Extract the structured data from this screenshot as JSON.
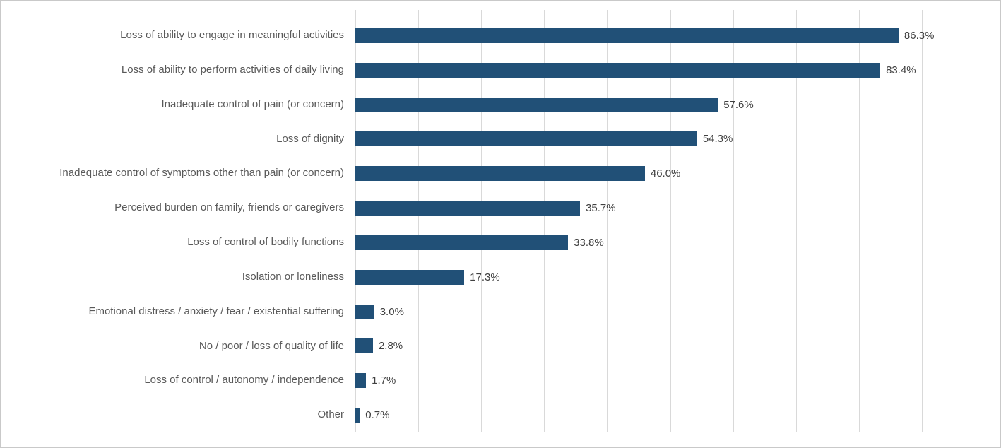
{
  "chart_data": {
    "type": "bar",
    "orientation": "horizontal",
    "title": "",
    "xlabel": "",
    "ylabel": "",
    "xlim": [
      0,
      100
    ],
    "gridline_interval": 10,
    "grid": true,
    "legend": false,
    "categories": [
      "Loss of ability to engage in meaningful activities",
      "Loss of ability to perform activities of daily living",
      "Inadequate control of pain (or concern)",
      "Loss of dignity",
      "Inadequate control of symptoms other than pain (or concern)",
      "Perceived burden on family, friends or caregivers",
      "Loss of control of bodily functions",
      "Isolation or loneliness",
      "Emotional distress / anxiety / fear / existential suffering",
      "No / poor / loss of quality of life",
      "Loss of control / autonomy / independence",
      "Other"
    ],
    "values": [
      86.3,
      83.4,
      57.6,
      54.3,
      46.0,
      35.7,
      33.8,
      17.3,
      3.0,
      2.8,
      1.7,
      0.7
    ],
    "value_labels": [
      "86.3%",
      "83.4%",
      "57.6%",
      "54.3%",
      "46.0%",
      "35.7%",
      "33.8%",
      "17.3%",
      "3.0%",
      "2.8%",
      "1.7%",
      "0.7%"
    ],
    "colors": {
      "bar": "#215077",
      "gridline": "#d9d9d9",
      "category_label": "#595959",
      "value_label": "#404040",
      "frame_border": "#c9c9c9",
      "background": "#ffffff"
    }
  }
}
